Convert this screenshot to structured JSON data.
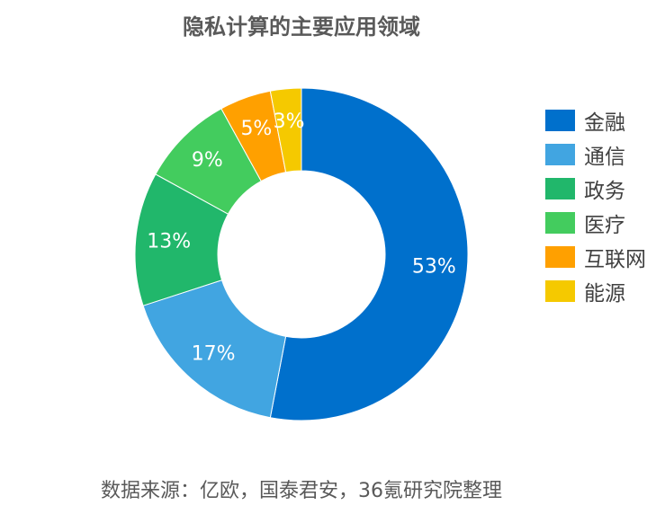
{
  "title": "隐私计算的主要应用领域",
  "source": "数据来源：亿欧，国泰君安，36氪研究院整理",
  "chart_data": {
    "type": "pie",
    "variant": "donut",
    "title": "隐私计算的主要应用领域",
    "legend_position": "right",
    "categories": [
      "金融",
      "通信",
      "政务",
      "医疗",
      "互联网",
      "能源"
    ],
    "values": [
      53,
      17,
      13,
      9,
      5,
      3
    ],
    "labels": [
      "53%",
      "17%",
      "13%",
      "9%",
      "5%",
      "3%"
    ],
    "colors": [
      "#0070CC",
      "#41A5E1",
      "#21B76B",
      "#43CC5E",
      "#FFA000",
      "#F5C900"
    ]
  }
}
